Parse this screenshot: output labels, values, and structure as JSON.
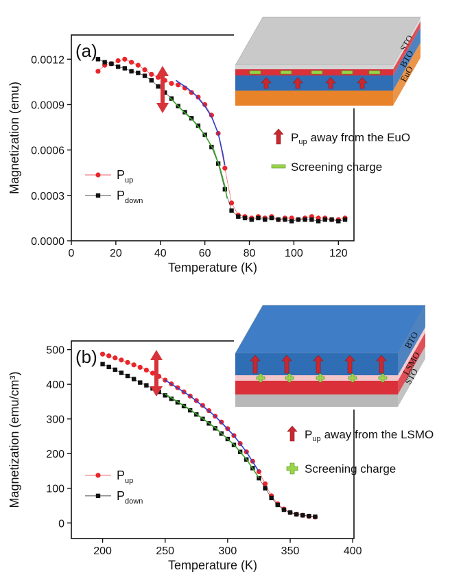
{
  "chart_data": [
    {
      "type": "line",
      "label": "(a)",
      "xlabel": "Temperature (K)",
      "ylabel": "Magnetization (emu)",
      "xlim": [
        0,
        127
      ],
      "xticks": [
        0,
        20,
        40,
        60,
        80,
        100,
        120
      ],
      "ylim": [
        0,
        0.00136
      ],
      "yticks": [
        {
          "value": 0,
          "label": "0.0000"
        },
        {
          "value": 0.0003,
          "label": "0.0003"
        },
        {
          "value": 0.0006,
          "label": "0.0006"
        },
        {
          "value": 0.0009,
          "label": "0.0009"
        },
        {
          "value": 0.0012,
          "label": "0.0012"
        }
      ],
      "legend": "lower left",
      "series": [
        {
          "name": "P",
          "name_sub": "up",
          "color": "#e8262b",
          "marker": "circle",
          "x": [
            12,
            15,
            18,
            21,
            24,
            27,
            30,
            33,
            36,
            39,
            42,
            45,
            48,
            51,
            54,
            57,
            60,
            63,
            66,
            69,
            72,
            75,
            78,
            81,
            84,
            87,
            90,
            93,
            96,
            99,
            102,
            105,
            108,
            111,
            114,
            117,
            120,
            123
          ],
          "values": [
            0.00112,
            0.00116,
            0.00117,
            0.00119,
            0.0012,
            0.00118,
            0.00116,
            0.00113,
            0.0011,
            0.00108,
            0.00106,
            0.00104,
            0.00103,
            0.00101,
            0.00098,
            0.00095,
            0.0009,
            0.00083,
            0.00071,
            0.00048,
            0.00025,
            0.00017,
            0.00016,
            0.00015,
            0.00016,
            0.00015,
            0.00016,
            0.00014,
            0.00015,
            0.00015,
            0.00014,
            0.00015,
            0.00016,
            0.00015,
            0.00015,
            0.00014,
            0.00014,
            0.00015
          ]
        },
        {
          "name": "P",
          "name_sub": "down",
          "color": "#111111",
          "marker": "square",
          "x": [
            12,
            15,
            18,
            21,
            24,
            27,
            30,
            33,
            36,
            39,
            42,
            45,
            48,
            51,
            54,
            57,
            60,
            63,
            66,
            69,
            72,
            75,
            78,
            81,
            84,
            87,
            90,
            93,
            96,
            99,
            102,
            105,
            108,
            111,
            114,
            117,
            120,
            123
          ],
          "values": [
            0.0012,
            0.00118,
            0.00117,
            0.00115,
            0.00114,
            0.00112,
            0.00111,
            0.00109,
            0.00106,
            0.00102,
            0.00098,
            0.00094,
            0.00089,
            0.00085,
            0.00081,
            0.00076,
            0.0007,
            0.00062,
            0.00051,
            0.00034,
            0.0002,
            0.00016,
            0.00015,
            0.00014,
            0.00015,
            0.00014,
            0.00015,
            0.00014,
            0.00014,
            0.00013,
            0.00014,
            0.00014,
            0.00014,
            0.00013,
            0.00014,
            0.00014,
            0.00013,
            0.00014
          ]
        },
        {
          "color": "#2b3fd0",
          "x": [
            47,
            52,
            56,
            60,
            63,
            66,
            68,
            69
          ],
          "values": [
            0.00106,
            0.00101,
            0.00096,
            0.00089,
            0.00082,
            0.00071,
            0.00058,
            0.0005
          ]
        },
        {
          "color": "#3aa52a",
          "x": [
            44,
            50,
            55,
            60,
            64,
            67,
            69,
            70
          ],
          "values": [
            0.00095,
            0.00086,
            0.00079,
            0.0007,
            0.0006,
            0.00047,
            0.00036,
            0.00028
          ]
        }
      ],
      "inset": {
        "layers": [
          "STO",
          "BTO",
          "EuO"
        ],
        "notes": [
          {
            "text": "P",
            "sub": "up",
            "rest": "away from the EuO"
          },
          {
            "text": "Screening charge"
          }
        ]
      }
    },
    {
      "type": "line",
      "label": "(b)",
      "xlabel": "Temperature (K)",
      "ylabel": "Magnetization  (emu/cm³)",
      "xlim": [
        175,
        401
      ],
      "xticks": [
        200,
        250,
        300,
        350,
        400
      ],
      "ylim": [
        -45,
        525
      ],
      "yticks": [
        0,
        100,
        200,
        300,
        400,
        500
      ],
      "legend": "lower left",
      "series": [
        {
          "name": "P",
          "name_sub": "up",
          "color": "#e8262b",
          "marker": "circle",
          "x": [
            200,
            205,
            210,
            215,
            220,
            225,
            230,
            235,
            240,
            245,
            250,
            255,
            260,
            265,
            270,
            275,
            280,
            285,
            290,
            295,
            300,
            305,
            310,
            315,
            320,
            325,
            330,
            335,
            340,
            345,
            350,
            355,
            360,
            365,
            370
          ],
          "values": [
            487,
            482,
            476,
            470,
            463,
            456,
            449,
            441,
            432,
            423,
            412,
            401,
            390,
            378,
            366,
            353,
            339,
            324,
            308,
            291,
            272,
            252,
            229,
            205,
            178,
            148,
            113,
            78,
            55,
            40,
            30,
            25,
            22,
            19,
            17
          ]
        },
        {
          "name": "P",
          "name_sub": "down",
          "color": "#111111",
          "marker": "square",
          "x": [
            200,
            205,
            210,
            215,
            220,
            225,
            230,
            235,
            240,
            245,
            250,
            255,
            260,
            265,
            270,
            275,
            280,
            285,
            290,
            295,
            300,
            305,
            310,
            315,
            320,
            325,
            330,
            335,
            340,
            345,
            350,
            355,
            360,
            365,
            370
          ],
          "values": [
            458,
            450,
            442,
            433,
            424,
            415,
            405,
            397,
            388,
            378,
            368,
            358,
            348,
            337,
            325,
            313,
            300,
            287,
            273,
            258,
            242,
            225,
            205,
            183,
            158,
            129,
            100,
            72,
            52,
            38,
            30,
            25,
            22,
            20,
            18
          ]
        },
        {
          "color": "#2b3fd0",
          "x": [
            250,
            270,
            290,
            305,
            315,
            325
          ],
          "values": [
            412,
            366,
            308,
            252,
            205,
            148
          ]
        },
        {
          "color": "#3aa52a",
          "x": [
            250,
            270,
            290,
            305,
            315,
            325
          ],
          "values": [
            372,
            327,
            275,
            226,
            184,
            130
          ]
        }
      ],
      "inset": {
        "layers": [
          "BTO",
          "LSMO",
          "STO"
        ],
        "notes": [
          {
            "text": "P",
            "sub": "up",
            "rest": "away from the LSMO"
          },
          {
            "text": "Screening charge"
          }
        ]
      }
    }
  ]
}
